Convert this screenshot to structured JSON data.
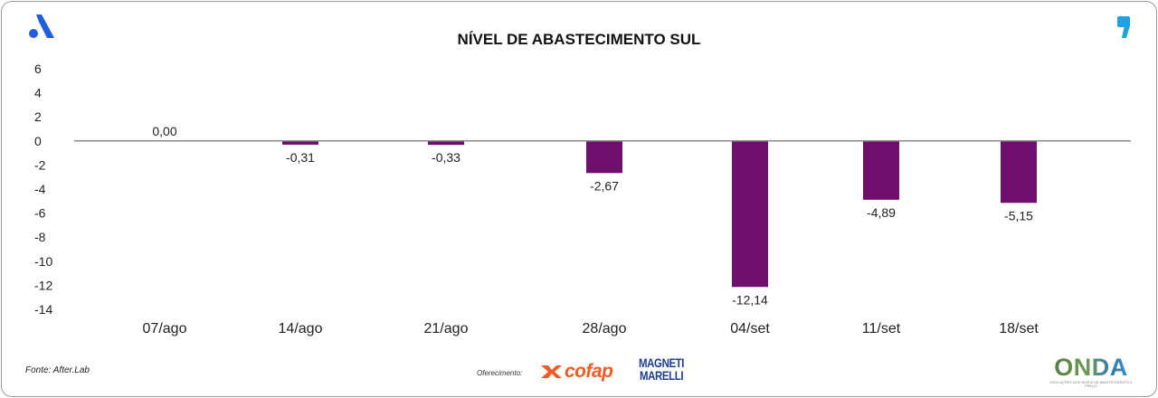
{
  "chart_data": {
    "type": "bar",
    "title": "NÍVEL DE ABASTECIMENTO SUL",
    "categories": [
      "07/ago",
      "14/ago",
      "21/ago",
      "28/ago",
      "04/set",
      "11/set",
      "18/set"
    ],
    "values": [
      0.0,
      -0.31,
      -0.33,
      -2.67,
      -12.14,
      -4.89,
      -5.15
    ],
    "value_labels": [
      "0,00",
      "-0,31",
      "-0,33",
      "-2,67",
      "-12,14",
      "-4,89",
      "-5,15"
    ],
    "y_ticks": [
      6,
      4,
      2,
      0,
      -2,
      -4,
      -6,
      -8,
      -10,
      -12,
      -14
    ],
    "y_tick_labels": [
      "6",
      "4",
      "2",
      "0",
      "-2",
      "-4",
      "-6",
      "-8",
      "-10",
      "-12",
      "-14"
    ],
    "ylim": [
      -14,
      6
    ],
    "xlabel": "",
    "ylabel": "",
    "grid": false,
    "bar_color": "#6e0f6e"
  },
  "footer": {
    "source": "Fonte: After.Lab",
    "offer_label": "Oferecimento:",
    "sponsor_1": "cofap",
    "sponsor_2_line1": "MAGNETI",
    "sponsor_2_line2": "MARELLI",
    "brand": "ONDA",
    "brand_tagline": "OSCILAÇÕES NOS NÍVEIS DE ABASTECIMENTO E PREÇO"
  },
  "colors": {
    "accent_blue": "#1f5ede",
    "quote_blue": "#1aa3e0",
    "cofap_orange": "#f15a24",
    "marelli_blue": "#1f3d8f"
  }
}
